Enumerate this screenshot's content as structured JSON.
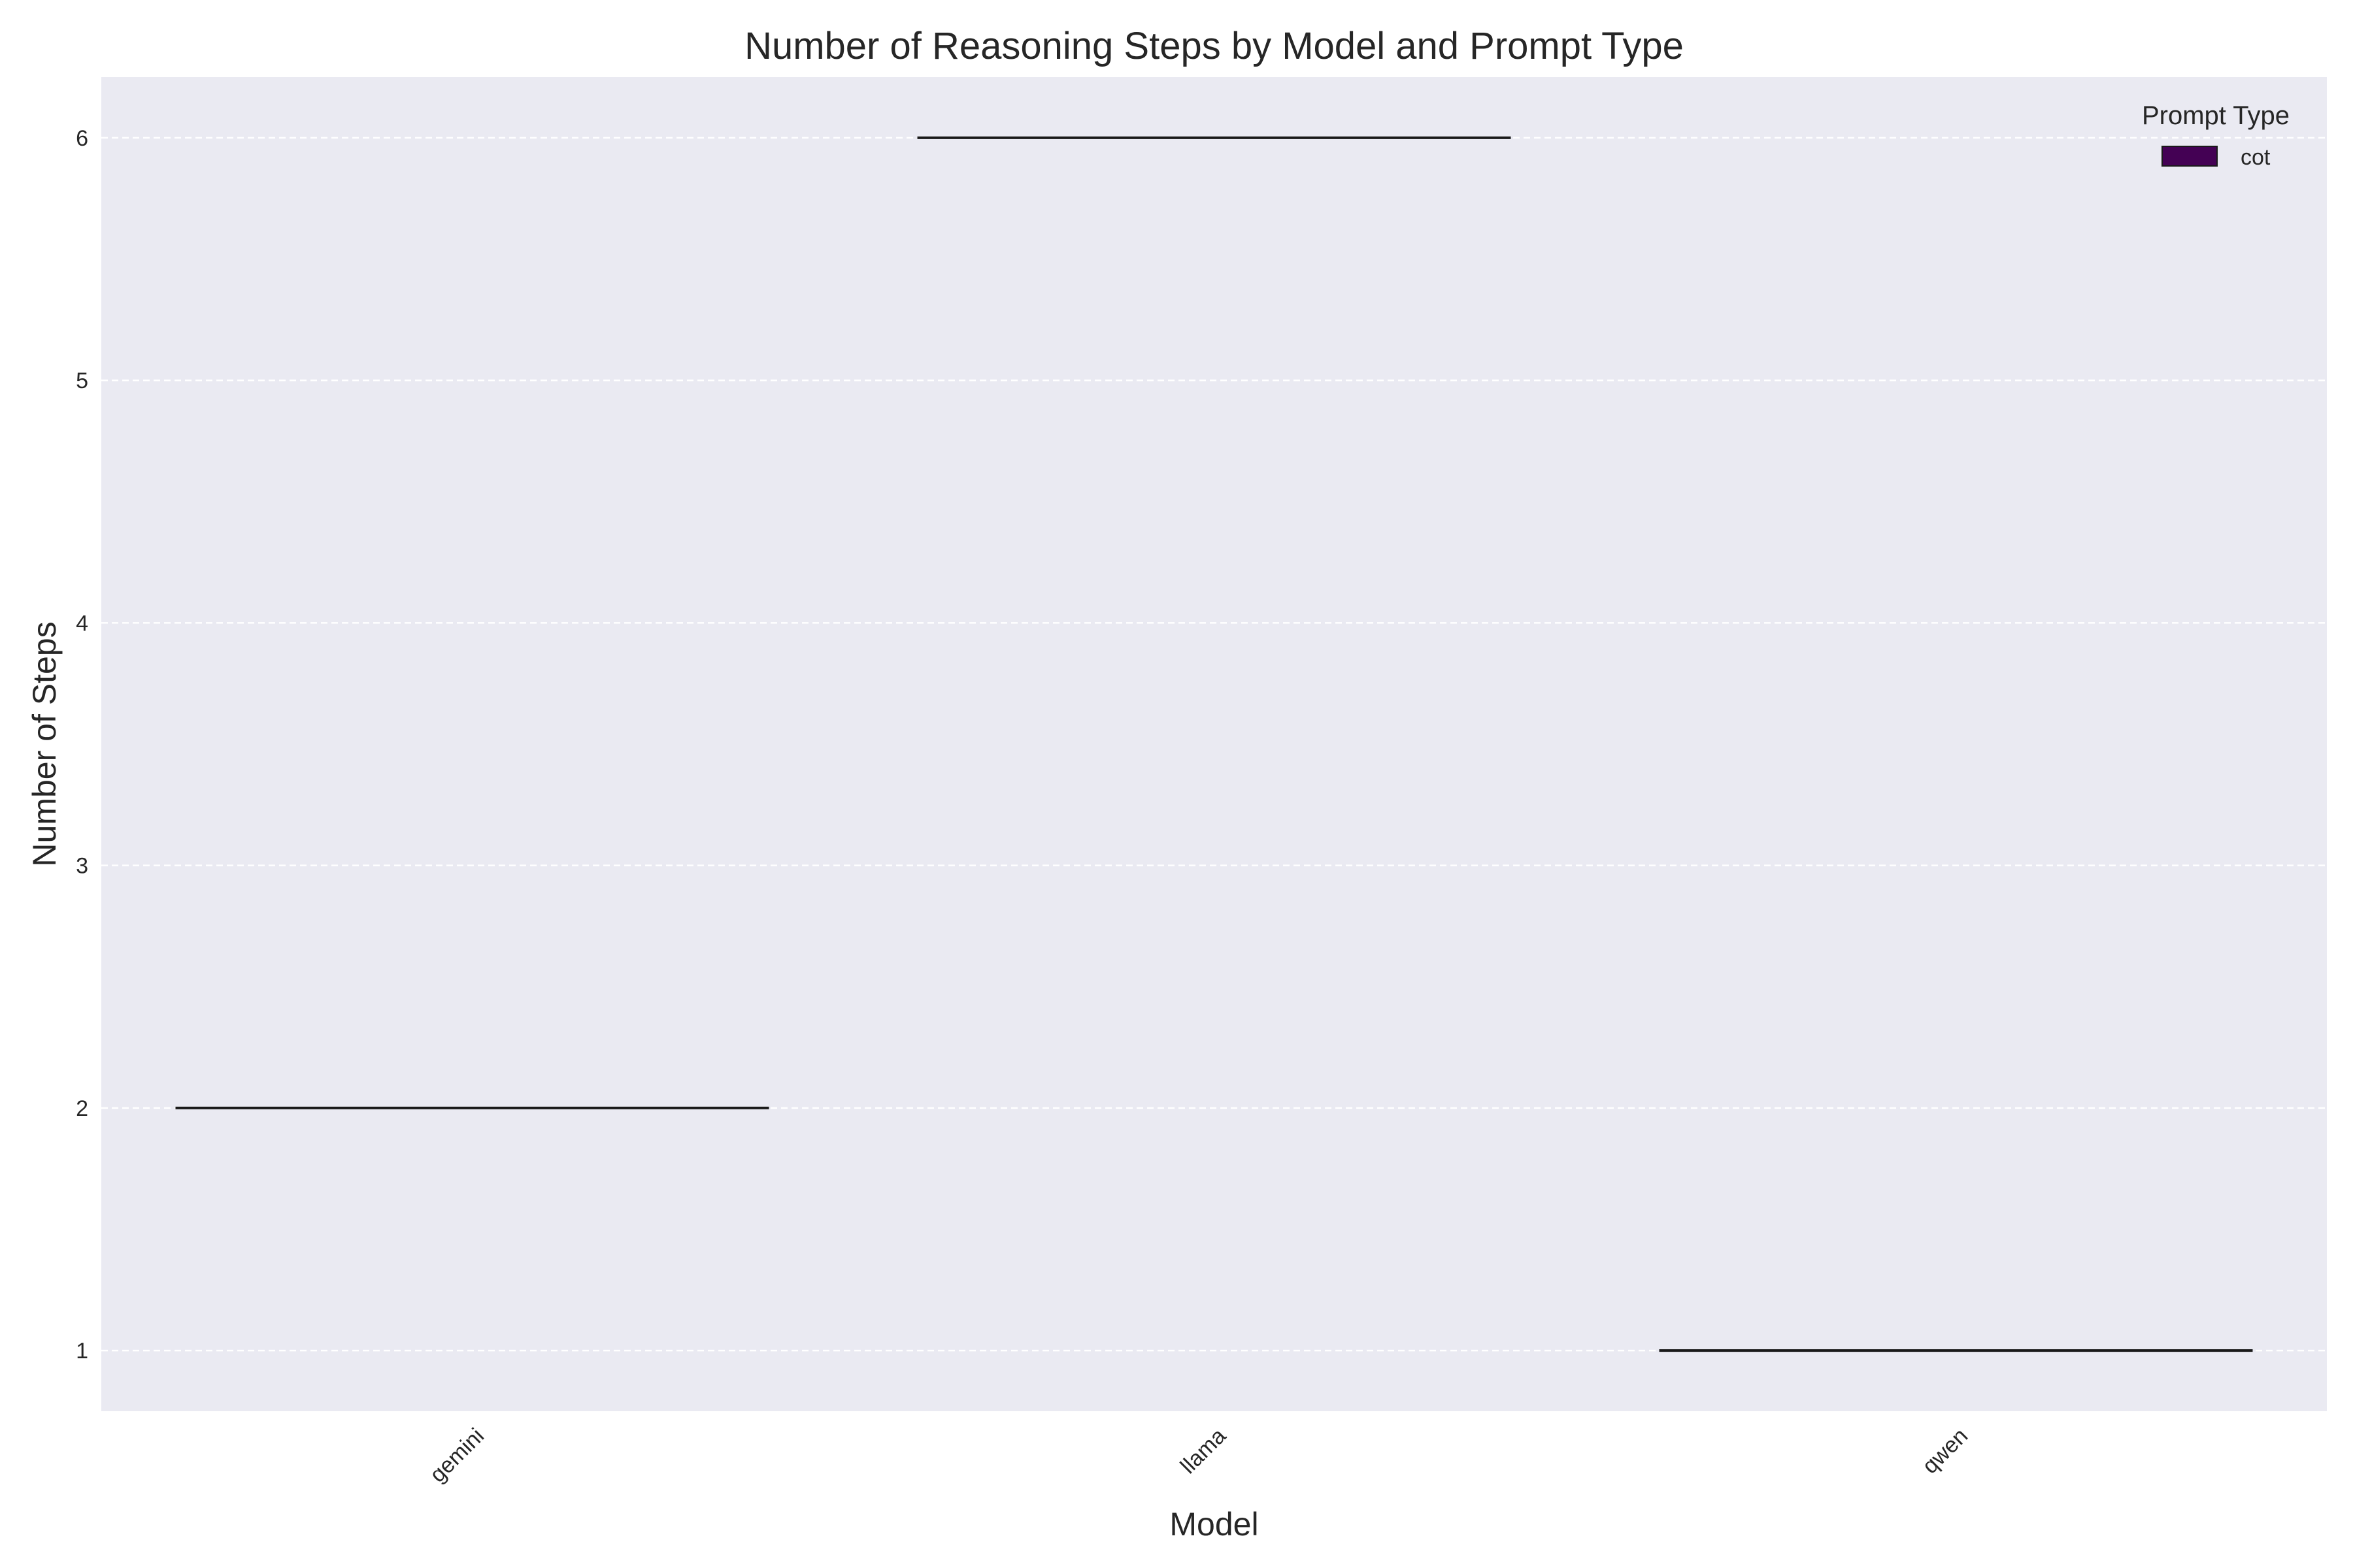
{
  "chart_data": {
    "type": "violin",
    "title": "Number of Reasoning Steps by Model and Prompt Type",
    "xlabel": "Model",
    "ylabel": "Number of Steps",
    "categories": [
      "gemini",
      "llama",
      "qwen"
    ],
    "series": [
      {
        "name": "cot",
        "values": [
          2,
          6,
          1
        ]
      }
    ],
    "ylim": [
      0.75,
      6.25
    ],
    "yticks": [
      1,
      2,
      3,
      4,
      5,
      6
    ],
    "grid": true,
    "legend": {
      "title": "Prompt Type",
      "placement": "top-right"
    },
    "colors": {
      "plot_background": "#eaeaf2",
      "grid": "#ffffff",
      "series_cot": "#440154",
      "mark_line": "#1a1a1a",
      "text": "#262626"
    }
  }
}
